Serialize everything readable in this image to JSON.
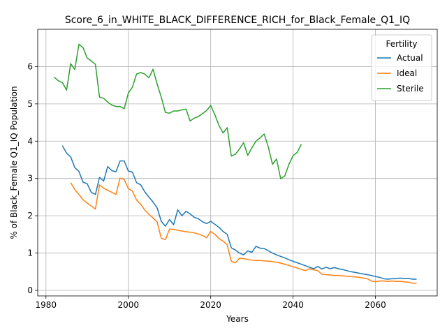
{
  "chart_data": {
    "type": "line",
    "title": "Score_6_in_WHITE_BLACK_DIFFERENCE_RICH_for_Black_Female_Q1_IQ",
    "xlabel": "Years",
    "ylabel": "% of Black_Female Q1_IQ Population",
    "xlim": [
      1978,
      2075
    ],
    "ylim": [
      -0.15,
      7.0
    ],
    "xticks": [
      1980,
      2000,
      2020,
      2040,
      2060
    ],
    "yticks": [
      0,
      1,
      2,
      3,
      4,
      5,
      6
    ],
    "grid": true,
    "legend": {
      "title": "Fertility",
      "position": "top-right"
    },
    "series": [
      {
        "name": "Actual",
        "color": "#1f77b4",
        "x": [
          1984,
          1985,
          1986,
          1987,
          1988,
          1989,
          1990,
          1991,
          1992,
          1993,
          1994,
          1995,
          1996,
          1997,
          1998,
          1999,
          2000,
          2001,
          2002,
          2003,
          2004,
          2005,
          2006,
          2007,
          2008,
          2009,
          2010,
          2011,
          2012,
          2013,
          2014,
          2015,
          2016,
          2017,
          2018,
          2019,
          2020,
          2021,
          2022,
          2023,
          2024,
          2025,
          2026,
          2027,
          2028,
          2029,
          2030,
          2031,
          2032,
          2033,
          2034,
          2035,
          2036,
          2037,
          2038,
          2039,
          2040,
          2041,
          2042,
          2043,
          2044,
          2045,
          2046,
          2047,
          2048,
          2049,
          2050,
          2051,
          2052,
          2053,
          2054,
          2055,
          2056,
          2057,
          2058,
          2059,
          2060,
          2061,
          2062,
          2063,
          2064,
          2065,
          2066,
          2067,
          2068,
          2069,
          2070
        ],
        "y": [
          3.88,
          3.68,
          3.58,
          3.29,
          3.19,
          2.9,
          2.86,
          2.63,
          2.57,
          3.03,
          2.93,
          3.32,
          3.21,
          3.18,
          3.47,
          3.47,
          3.2,
          3.17,
          2.89,
          2.83,
          2.64,
          2.5,
          2.37,
          2.21,
          1.85,
          1.72,
          1.9,
          1.76,
          2.16,
          2.0,
          2.12,
          2.05,
          1.96,
          1.92,
          1.84,
          1.79,
          1.85,
          1.77,
          1.69,
          1.58,
          1.5,
          1.14,
          1.08,
          1.0,
          0.95,
          1.06,
          1.02,
          1.18,
          1.13,
          1.12,
          1.06,
          1.0,
          0.95,
          0.91,
          0.87,
          0.82,
          0.78,
          0.74,
          0.7,
          0.66,
          0.62,
          0.58,
          0.64,
          0.57,
          0.62,
          0.58,
          0.61,
          0.58,
          0.56,
          0.53,
          0.5,
          0.48,
          0.46,
          0.44,
          0.42,
          0.4,
          0.37,
          0.35,
          0.31,
          0.3,
          0.31,
          0.31,
          0.33,
          0.31,
          0.32,
          0.3,
          0.3
        ]
      },
      {
        "name": "Ideal",
        "color": "#ff7f0e",
        "x": [
          1986,
          1987,
          1988,
          1989,
          1990,
          1991,
          1992,
          1993,
          1994,
          1995,
          1996,
          1997,
          1998,
          1999,
          2000,
          2001,
          2002,
          2003,
          2004,
          2005,
          2006,
          2007,
          2008,
          2009,
          2010,
          2011,
          2012,
          2013,
          2014,
          2015,
          2016,
          2017,
          2018,
          2019,
          2020,
          2021,
          2022,
          2023,
          2024,
          2025,
          2026,
          2027,
          2028,
          2029,
          2030,
          2031,
          2032,
          2033,
          2034,
          2035,
          2036,
          2037,
          2038,
          2039,
          2040,
          2041,
          2042,
          2043,
          2044,
          2045,
          2046,
          2047,
          2048,
          2049,
          2050,
          2051,
          2052,
          2053,
          2054,
          2055,
          2056,
          2057,
          2058,
          2059,
          2060,
          2061,
          2062,
          2063,
          2064,
          2065,
          2066,
          2067,
          2068,
          2069,
          2070
        ],
        "y": [
          2.89,
          2.7,
          2.57,
          2.43,
          2.34,
          2.26,
          2.18,
          2.83,
          2.74,
          2.68,
          2.63,
          2.57,
          3.01,
          2.97,
          2.73,
          2.66,
          2.42,
          2.31,
          2.15,
          2.04,
          1.94,
          1.83,
          1.4,
          1.36,
          1.64,
          1.64,
          1.61,
          1.59,
          1.57,
          1.56,
          1.54,
          1.51,
          1.47,
          1.41,
          1.58,
          1.5,
          1.39,
          1.32,
          1.22,
          0.78,
          0.74,
          0.86,
          0.85,
          0.83,
          0.81,
          0.8,
          0.8,
          0.79,
          0.78,
          0.77,
          0.75,
          0.73,
          0.7,
          0.67,
          0.63,
          0.6,
          0.56,
          0.53,
          0.58,
          0.55,
          0.53,
          0.43,
          0.42,
          0.41,
          0.4,
          0.4,
          0.39,
          0.38,
          0.37,
          0.36,
          0.35,
          0.33,
          0.31,
          0.25,
          0.23,
          0.25,
          0.25,
          0.24,
          0.25,
          0.24,
          0.24,
          0.23,
          0.22,
          0.19,
          0.19
        ]
      },
      {
        "name": "Sterile",
        "color": "#2ca02c",
        "x": [
          1982,
          1983,
          1984,
          1985,
          1986,
          1987,
          1988,
          1989,
          1990,
          1991,
          1992,
          1993,
          1994,
          1995,
          1996,
          1997,
          1998,
          1999,
          2000,
          2001,
          2002,
          2003,
          2004,
          2005,
          2006,
          2007,
          2008,
          2009,
          2010,
          2011,
          2012,
          2013,
          2014,
          2015,
          2016,
          2017,
          2018,
          2019,
          2020,
          2021,
          2022,
          2023,
          2024,
          2025,
          2026,
          2027,
          2028,
          2029,
          2030,
          2031,
          2032,
          2033,
          2034,
          2035,
          2036,
          2037,
          2038,
          2039,
          2040,
          2041,
          2042
        ],
        "y": [
          5.72,
          5.62,
          5.57,
          5.37,
          6.08,
          5.92,
          6.6,
          6.51,
          6.23,
          6.15,
          6.06,
          5.18,
          5.15,
          5.05,
          4.97,
          4.93,
          4.93,
          4.87,
          5.29,
          5.45,
          5.8,
          5.84,
          5.8,
          5.7,
          5.93,
          5.53,
          5.18,
          4.77,
          4.75,
          4.81,
          4.81,
          4.84,
          4.86,
          4.54,
          4.62,
          4.66,
          4.74,
          4.82,
          4.96,
          4.71,
          4.42,
          4.22,
          4.36,
          3.6,
          3.65,
          3.79,
          3.96,
          3.62,
          3.82,
          4.0,
          4.09,
          4.19,
          3.84,
          3.38,
          3.52,
          2.99,
          3.07,
          3.38,
          3.61,
          3.7,
          3.92
        ]
      }
    ]
  }
}
